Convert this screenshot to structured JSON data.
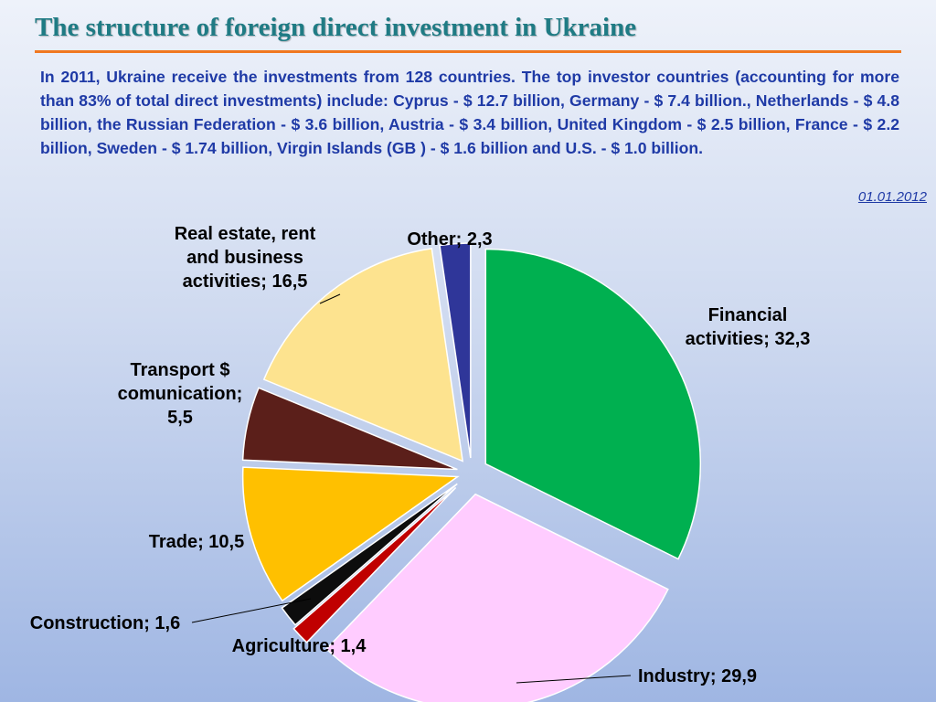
{
  "slide": {
    "title": "The structure of foreign direct investment in Ukraine",
    "intro": "In 2011, Ukraine receive the investments  from 128 countries. The top investor countries (accounting for more than 83% of total direct investments) include: Cyprus - $ 12.7 billion, Germany - $ 7.4 billion., Netherlands - $ 4.8 billion, the Russian Federation - $ 3.6 billion, Austria - $ 3.4 billion, United Kingdom - $ 2.5 billion, France - $ 2.2 billion, Sweden - $ 1.74 billion, Virgin Islands (GB ) - $ 1.6 billion and U.S. - $ 1.0 billion.",
    "date": "01.01.2012"
  },
  "colors": {
    "title": "#1f7b84",
    "rule": "#f07820",
    "text": "#1f3aa6"
  },
  "chart_data": {
    "type": "pie",
    "slices": [
      {
        "name": "Financial activities",
        "value": 32.3,
        "label": [
          "Financial",
          "activities; 32,3"
        ],
        "color": "#00b050"
      },
      {
        "name": "Industry",
        "value": 29.9,
        "label": [
          "Industry; 29,9"
        ],
        "color": "#ffccff"
      },
      {
        "name": "Agriculture",
        "value": 1.4,
        "label": [
          "Agriculture; 1,4"
        ],
        "color": "#c00000"
      },
      {
        "name": "Construction",
        "value": 1.6,
        "label": [
          "Construction; 1,6"
        ],
        "color": "#0d0d0d"
      },
      {
        "name": "Trade",
        "value": 10.5,
        "label": [
          "Trade; 10,5"
        ],
        "color": "#ffc000"
      },
      {
        "name": "Transport $ comunication",
        "value": 5.5,
        "label": [
          "Transport $",
          "comunication;",
          "5,5"
        ],
        "color": "#5b1f1a"
      },
      {
        "name": "Real estate, rent and business activities",
        "value": 16.5,
        "label": [
          "Real estate, rent",
          "and business",
          "activities; 16,5"
        ],
        "color": "#fde38f"
      },
      {
        "name": "Other",
        "value": 2.3,
        "label": [
          "Other; 2,3"
        ],
        "color": "#2f3699"
      }
    ]
  }
}
